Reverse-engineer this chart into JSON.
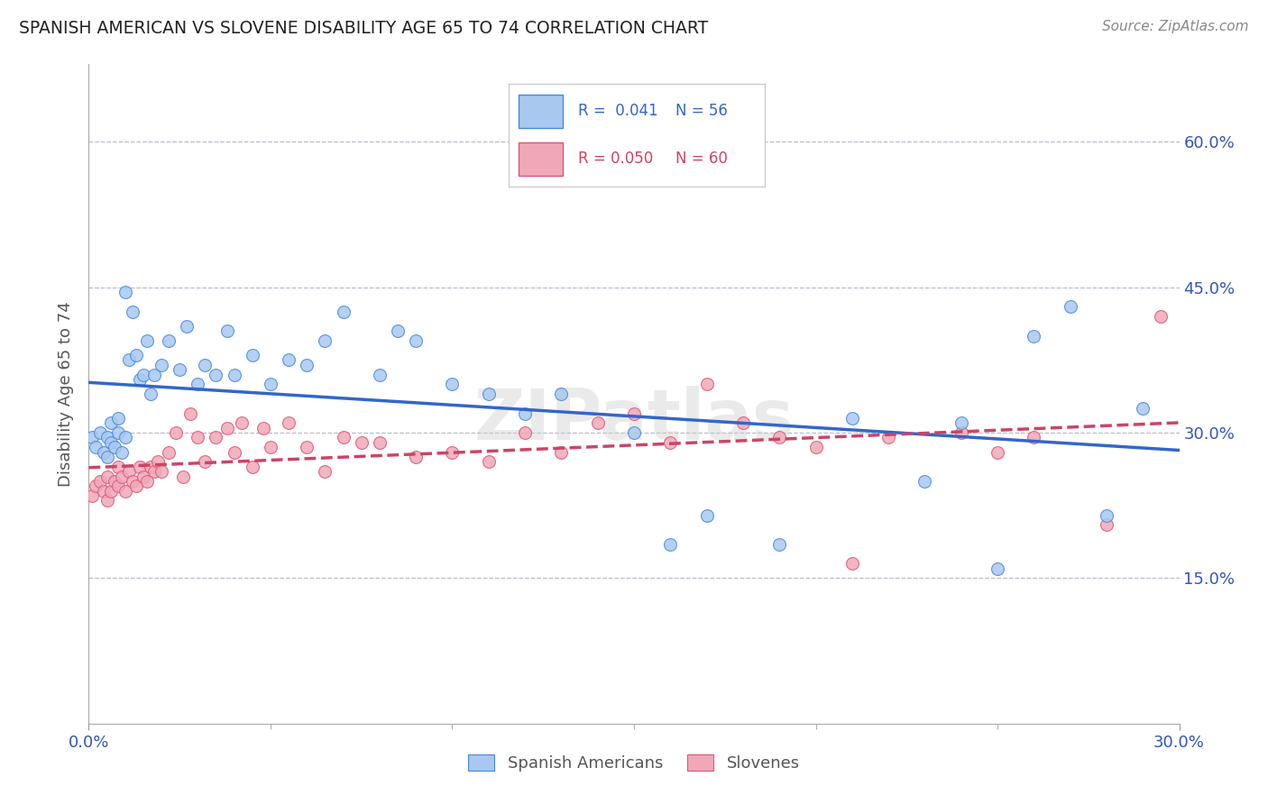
{
  "title": "SPANISH AMERICAN VS SLOVENE DISABILITY AGE 65 TO 74 CORRELATION CHART",
  "source": "Source: ZipAtlas.com",
  "ylabel": "Disability Age 65 to 74",
  "xmin": 0.0,
  "xmax": 0.3,
  "ymin": 0.0,
  "ymax": 0.68,
  "yticks": [
    0.15,
    0.3,
    0.45,
    0.6
  ],
  "ytick_labels": [
    "15.0%",
    "30.0%",
    "45.0%",
    "60.0%"
  ],
  "grid_color": "#bbbbcc",
  "background_color": "#ffffff",
  "blue_fill": "#a8c8f0",
  "pink_fill": "#f0a8b8",
  "blue_edge": "#4488dd",
  "pink_edge": "#dd5577",
  "blue_line_color": "#3366cc",
  "pink_line_color": "#cc4466",
  "legend_R1": "0.041",
  "legend_N1": "56",
  "legend_R2": "0.050",
  "legend_N2": "60",
  "label1": "Spanish Americans",
  "label2": "Slovenes",
  "blue_x": [
    0.001,
    0.002,
    0.003,
    0.004,
    0.005,
    0.005,
    0.006,
    0.006,
    0.007,
    0.008,
    0.008,
    0.009,
    0.01,
    0.01,
    0.011,
    0.012,
    0.013,
    0.014,
    0.015,
    0.016,
    0.017,
    0.018,
    0.02,
    0.022,
    0.025,
    0.027,
    0.03,
    0.032,
    0.035,
    0.038,
    0.04,
    0.045,
    0.05,
    0.055,
    0.06,
    0.065,
    0.07,
    0.08,
    0.085,
    0.09,
    0.1,
    0.11,
    0.12,
    0.13,
    0.15,
    0.16,
    0.17,
    0.19,
    0.21,
    0.23,
    0.24,
    0.25,
    0.26,
    0.27,
    0.28,
    0.29
  ],
  "blue_y": [
    0.295,
    0.285,
    0.3,
    0.28,
    0.295,
    0.275,
    0.31,
    0.29,
    0.285,
    0.3,
    0.315,
    0.28,
    0.295,
    0.445,
    0.375,
    0.425,
    0.38,
    0.355,
    0.36,
    0.395,
    0.34,
    0.36,
    0.37,
    0.395,
    0.365,
    0.41,
    0.35,
    0.37,
    0.36,
    0.405,
    0.36,
    0.38,
    0.35,
    0.375,
    0.37,
    0.395,
    0.425,
    0.36,
    0.405,
    0.395,
    0.35,
    0.34,
    0.32,
    0.34,
    0.3,
    0.185,
    0.215,
    0.185,
    0.315,
    0.25,
    0.31,
    0.16,
    0.4,
    0.43,
    0.215,
    0.325
  ],
  "pink_x": [
    0.001,
    0.002,
    0.003,
    0.004,
    0.005,
    0.005,
    0.006,
    0.007,
    0.008,
    0.008,
    0.009,
    0.01,
    0.011,
    0.012,
    0.013,
    0.014,
    0.015,
    0.016,
    0.017,
    0.018,
    0.019,
    0.02,
    0.022,
    0.024,
    0.026,
    0.028,
    0.03,
    0.032,
    0.035,
    0.038,
    0.04,
    0.042,
    0.045,
    0.048,
    0.05,
    0.055,
    0.06,
    0.065,
    0.07,
    0.075,
    0.08,
    0.09,
    0.1,
    0.11,
    0.12,
    0.13,
    0.14,
    0.15,
    0.16,
    0.17,
    0.18,
    0.19,
    0.2,
    0.21,
    0.22,
    0.24,
    0.25,
    0.26,
    0.28,
    0.295
  ],
  "pink_y": [
    0.235,
    0.245,
    0.25,
    0.24,
    0.255,
    0.23,
    0.24,
    0.25,
    0.245,
    0.265,
    0.255,
    0.24,
    0.26,
    0.25,
    0.245,
    0.265,
    0.255,
    0.25,
    0.265,
    0.26,
    0.27,
    0.26,
    0.28,
    0.3,
    0.255,
    0.32,
    0.295,
    0.27,
    0.295,
    0.305,
    0.28,
    0.31,
    0.265,
    0.305,
    0.285,
    0.31,
    0.285,
    0.26,
    0.295,
    0.29,
    0.29,
    0.275,
    0.28,
    0.27,
    0.3,
    0.28,
    0.31,
    0.32,
    0.29,
    0.35,
    0.31,
    0.295,
    0.285,
    0.165,
    0.295,
    0.3,
    0.28,
    0.295,
    0.205,
    0.42
  ],
  "watermark": "ZIPatlas",
  "marker_size": 100
}
